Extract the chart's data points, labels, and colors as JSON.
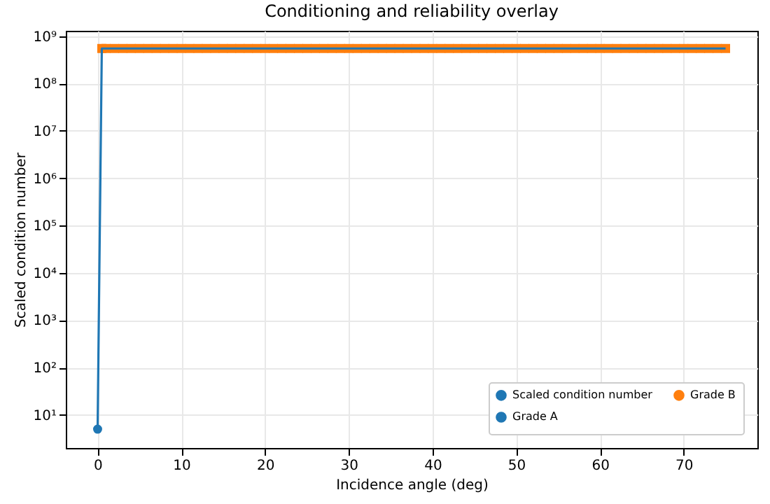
{
  "chart_data": {
    "type": "line",
    "title": "Conditioning and reliability overlay",
    "xlabel": "Incidence angle (deg)",
    "ylabel": "Scaled condition number",
    "log": "y",
    "grid": true,
    "legend": "bottom right",
    "xlim": [
      -3.8,
      78.8
    ],
    "xticks": [
      0,
      10,
      20,
      30,
      40,
      50,
      60,
      70
    ],
    "ylim": [
      2,
      1300000000
    ],
    "yticks": [
      {
        "value": 10,
        "label": "10¹"
      },
      {
        "value": 100,
        "label": "10²"
      },
      {
        "value": 1000,
        "label": "10³"
      },
      {
        "value": 10000,
        "label": "10⁴"
      },
      {
        "value": 100000,
        "label": "10⁵"
      },
      {
        "value": 1000000,
        "label": "10⁶"
      },
      {
        "value": 10000000,
        "label": "10⁷"
      },
      {
        "value": 100000000,
        "label": "10⁸"
      },
      {
        "value": 1000000000,
        "label": "10⁹"
      }
    ],
    "series": [
      {
        "name": "Scaled condition number",
        "color": "#1f77b4",
        "x": [
          0,
          0.5,
          75
        ],
        "values": [
          5,
          550000000,
          550000000
        ]
      },
      {
        "name": "Grade A",
        "type": "scatter",
        "marker": "circle",
        "color": "#1f77b4",
        "x": [
          0
        ],
        "values": [
          5
        ]
      },
      {
        "name": "Grade B",
        "type": "scatter",
        "marker": "square",
        "color": "#ff7f0e",
        "x": [
          0.5,
          1,
          2,
          3,
          4,
          5,
          6,
          7,
          8,
          9,
          10,
          11,
          12,
          13,
          14,
          15,
          16,
          17,
          18,
          19,
          20,
          21,
          22,
          23,
          24,
          25,
          26,
          27,
          28,
          29,
          30,
          31,
          32,
          33,
          34,
          35,
          36,
          37,
          38,
          39,
          40,
          41,
          42,
          43,
          44,
          45,
          46,
          47,
          48,
          49,
          50,
          51,
          52,
          53,
          54,
          55,
          56,
          57,
          58,
          59,
          60,
          61,
          62,
          63,
          64,
          65,
          66,
          67,
          68,
          69,
          70,
          71,
          72,
          73,
          74,
          75
        ],
        "values": [
          550000000,
          550000000,
          550000000,
          550000000,
          550000000,
          550000000,
          550000000,
          550000000,
          550000000,
          550000000,
          550000000,
          550000000,
          550000000,
          550000000,
          550000000,
          550000000,
          550000000,
          550000000,
          550000000,
          550000000,
          550000000,
          550000000,
          550000000,
          550000000,
          550000000,
          550000000,
          550000000,
          550000000,
          550000000,
          550000000,
          550000000,
          550000000,
          550000000,
          550000000,
          550000000,
          550000000,
          550000000,
          550000000,
          550000000,
          550000000,
          550000000,
          550000000,
          550000000,
          550000000,
          550000000,
          550000000,
          550000000,
          550000000,
          550000000,
          550000000,
          550000000,
          550000000,
          550000000,
          550000000,
          550000000,
          550000000,
          550000000,
          550000000,
          550000000,
          550000000,
          550000000,
          550000000,
          550000000,
          550000000,
          550000000,
          550000000,
          550000000,
          550000000,
          550000000,
          550000000,
          550000000,
          550000000,
          550000000,
          550000000,
          550000000,
          550000000
        ]
      }
    ]
  }
}
